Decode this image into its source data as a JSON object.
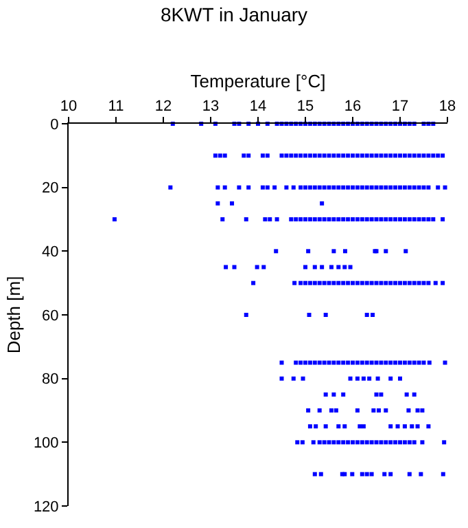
{
  "chart_data": {
    "type": "scatter",
    "title": "8KWT in January",
    "xlabel": "Temperature [°C]",
    "ylabel": "Depth [m]",
    "xlim": [
      10,
      18
    ],
    "xticks": [
      10,
      11,
      12,
      13,
      14,
      15,
      16,
      17,
      18
    ],
    "ylim": [
      120,
      0
    ],
    "yticks": [
      0,
      20,
      40,
      60,
      80,
      100,
      120
    ],
    "marker": "square",
    "series": [
      {
        "color": "#0000ff",
        "x": [
          12.2,
          12.8,
          13.1,
          13.5,
          13.6,
          13.8,
          14.0,
          14.2,
          14.4,
          14.5,
          14.6,
          14.7,
          14.8,
          14.9,
          15.0,
          15.1,
          15.2,
          15.3,
          15.4,
          15.5,
          15.6,
          15.7,
          15.8,
          15.9,
          16.0,
          16.1,
          16.2,
          16.3,
          16.4,
          16.5,
          16.6,
          16.7,
          16.8,
          16.9,
          17.0,
          17.1,
          17.2,
          17.3,
          17.5,
          17.6,
          17.7
        ],
        "values": [
          0,
          0,
          0,
          0,
          0,
          0,
          0,
          0,
          0,
          0,
          0,
          0,
          0,
          0,
          0,
          0,
          0,
          0,
          0,
          0,
          0,
          0,
          0,
          0,
          0,
          0,
          0,
          0,
          0,
          0,
          0,
          0,
          0,
          0,
          0,
          0,
          0,
          0,
          0,
          0,
          0
        ]
      },
      {
        "color": "#0000ff",
        "x": [
          13.1,
          13.2,
          13.3,
          13.7,
          13.8,
          14.1,
          14.2,
          14.5,
          14.6,
          14.7,
          14.8,
          14.9,
          15.0,
          15.1,
          15.2,
          15.3,
          15.4,
          15.5,
          15.6,
          15.7,
          15.8,
          15.9,
          16.0,
          16.1,
          16.2,
          16.3,
          16.4,
          16.5,
          16.6,
          16.7,
          16.8,
          16.9,
          17.0,
          17.1,
          17.2,
          17.3,
          17.4,
          17.5,
          17.6,
          17.7,
          17.8,
          17.9
        ],
        "values": [
          10,
          10,
          10,
          10,
          10,
          10,
          10,
          10,
          10,
          10,
          10,
          10,
          10,
          10,
          10,
          10,
          10,
          10,
          10,
          10,
          10,
          10,
          10,
          10,
          10,
          10,
          10,
          10,
          10,
          10,
          10,
          10,
          10,
          10,
          10,
          10,
          10,
          10,
          10,
          10,
          10,
          10
        ]
      },
      {
        "color": "#0000ff",
        "x": [
          12.15,
          13.15,
          13.3,
          13.6,
          13.8,
          14.1,
          14.2,
          14.35,
          14.6,
          14.75,
          14.9,
          15.0,
          15.1,
          15.2,
          15.3,
          15.4,
          15.5,
          15.6,
          15.7,
          15.8,
          15.9,
          16.0,
          16.1,
          16.2,
          16.3,
          16.4,
          16.5,
          16.6,
          16.7,
          16.8,
          16.9,
          17.0,
          17.1,
          17.2,
          17.3,
          17.4,
          17.5,
          17.6,
          17.8,
          17.95
        ],
        "values": [
          20,
          20,
          20,
          20,
          20,
          20,
          20,
          20,
          20,
          20,
          20,
          20,
          20,
          20,
          20,
          20,
          20,
          20,
          20,
          20,
          20,
          20,
          20,
          20,
          20,
          20,
          20,
          20,
          20,
          20,
          20,
          20,
          20,
          20,
          20,
          20,
          20,
          20,
          20,
          20
        ]
      },
      {
        "color": "#0000ff",
        "x": [
          13.15,
          13.45,
          15.35
        ],
        "values": [
          25,
          25,
          25
        ]
      },
      {
        "color": "#0000ff",
        "x": [
          10.97,
          13.25,
          13.75,
          14.15,
          14.25,
          14.4,
          14.7,
          14.8,
          14.9,
          15.0,
          15.1,
          15.2,
          15.3,
          15.4,
          15.5,
          15.6,
          15.7,
          15.8,
          15.9,
          16.0,
          16.1,
          16.2,
          16.3,
          16.4,
          16.5,
          16.6,
          16.7,
          16.8,
          16.9,
          17.0,
          17.1,
          17.2,
          17.3,
          17.4,
          17.5,
          17.6,
          17.7,
          17.9
        ],
        "values": [
          30,
          30,
          30,
          30,
          30,
          30,
          30,
          30,
          30,
          30,
          30,
          30,
          30,
          30,
          30,
          30,
          30,
          30,
          30,
          30,
          30,
          30,
          30,
          30,
          30,
          30,
          30,
          30,
          30,
          30,
          30,
          30,
          30,
          30,
          30,
          30,
          30,
          30
        ]
      },
      {
        "color": "#0000ff",
        "x": [
          14.38,
          15.06,
          15.6,
          15.84,
          16.47,
          16.5,
          16.7,
          17.12
        ],
        "values": [
          40,
          40,
          40,
          40,
          40,
          40,
          40,
          40
        ]
      },
      {
        "color": "#0000ff",
        "x": [
          13.32,
          13.5,
          13.98,
          14.12,
          15.0,
          15.2,
          15.35,
          15.55,
          15.7,
          15.83,
          15.95
        ],
        "values": [
          45,
          45,
          45,
          45,
          45,
          45,
          45,
          45,
          45,
          45,
          45
        ]
      },
      {
        "color": "#0000ff",
        "x": [
          13.9,
          14.77,
          14.9,
          15.0,
          15.1,
          15.2,
          15.3,
          15.4,
          15.5,
          15.6,
          15.7,
          15.8,
          15.9,
          16.0,
          16.1,
          16.2,
          16.3,
          16.4,
          16.5,
          16.6,
          16.7,
          16.8,
          16.9,
          17.0,
          17.1,
          17.2,
          17.3,
          17.4,
          17.5,
          17.6,
          17.75,
          17.9
        ],
        "values": [
          50,
          50,
          50,
          50,
          50,
          50,
          50,
          50,
          50,
          50,
          50,
          50,
          50,
          50,
          50,
          50,
          50,
          50,
          50,
          50,
          50,
          50,
          50,
          50,
          50,
          50,
          50,
          50,
          50,
          50,
          50,
          50
        ]
      },
      {
        "color": "#0000ff",
        "x": [
          13.75,
          15.08,
          15.43,
          16.3,
          16.42
        ],
        "values": [
          60,
          60,
          60,
          60,
          60
        ]
      },
      {
        "color": "#0000ff",
        "x": [
          14.5,
          14.8,
          14.9,
          15.0,
          15.1,
          15.2,
          15.3,
          15.4,
          15.5,
          15.6,
          15.7,
          15.8,
          15.9,
          16.0,
          16.1,
          16.2,
          16.3,
          16.4,
          16.5,
          16.6,
          16.7,
          16.8,
          16.9,
          17.0,
          17.1,
          17.2,
          17.3,
          17.4,
          17.5,
          17.62,
          17.95
        ],
        "values": [
          75,
          75,
          75,
          75,
          75,
          75,
          75,
          75,
          75,
          75,
          75,
          75,
          75,
          75,
          75,
          75,
          75,
          75,
          75,
          75,
          75,
          75,
          75,
          75,
          75,
          75,
          75,
          75,
          75,
          75,
          75
        ]
      },
      {
        "color": "#0000ff",
        "x": [
          14.5,
          14.75,
          14.95,
          15.95,
          16.1,
          16.23,
          16.35,
          16.53,
          16.8,
          17.0
        ],
        "values": [
          80,
          80,
          80,
          80,
          80,
          80,
          80,
          80,
          80,
          80
        ]
      },
      {
        "color": "#0000ff",
        "x": [
          15.43,
          15.6,
          15.8,
          16.5,
          16.6,
          17.14,
          17.3
        ],
        "values": [
          85,
          85,
          85,
          85,
          85,
          85,
          85
        ]
      },
      {
        "color": "#0000ff",
        "x": [
          15.06,
          15.3,
          15.55,
          15.65,
          16.1,
          16.44,
          16.55,
          16.7,
          17.18,
          17.37,
          17.47
        ],
        "values": [
          90,
          90,
          90,
          90,
          90,
          90,
          90,
          90,
          90,
          90,
          90
        ]
      },
      {
        "color": "#0000ff",
        "x": [
          15.1,
          15.22,
          15.43,
          15.7,
          15.83,
          16.15,
          16.23,
          16.8,
          16.95,
          17.1,
          17.25,
          17.37,
          17.6
        ],
        "values": [
          95,
          95,
          95,
          95,
          95,
          95,
          95,
          95,
          95,
          95,
          95,
          95,
          95
        ]
      },
      {
        "color": "#0000ff",
        "x": [
          14.83,
          14.94,
          15.17,
          15.3,
          15.4,
          15.5,
          15.6,
          15.7,
          15.8,
          15.9,
          16.0,
          16.1,
          16.2,
          16.3,
          16.4,
          16.5,
          16.6,
          16.7,
          16.8,
          16.9,
          17.0,
          17.1,
          17.2,
          17.3,
          17.47,
          17.93
        ],
        "values": [
          100,
          100,
          100,
          100,
          100,
          100,
          100,
          100,
          100,
          100,
          100,
          100,
          100,
          100,
          100,
          100,
          100,
          100,
          100,
          100,
          100,
          100,
          100,
          100,
          100,
          100
        ]
      },
      {
        "color": "#0000ff",
        "x": [
          15.2,
          15.33,
          15.78,
          15.83,
          15.99,
          16.2,
          16.3,
          16.4,
          16.67,
          16.8,
          17.2,
          17.44,
          17.91
        ],
        "values": [
          110,
          110,
          110,
          110,
          110,
          110,
          110,
          110,
          110,
          110,
          110,
          110,
          110
        ]
      }
    ]
  }
}
